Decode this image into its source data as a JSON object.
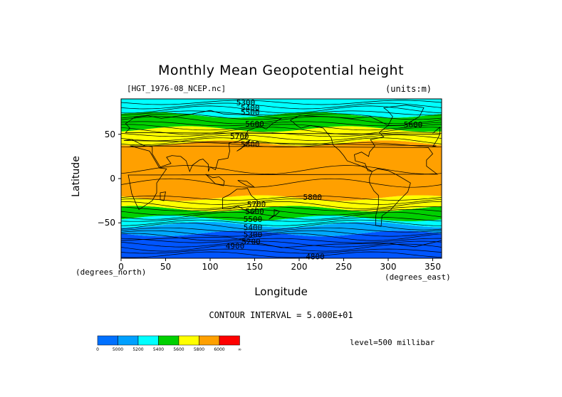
{
  "title": "Monthly Mean Geopotential height",
  "file_label": "[HGT_1976-08_NCEP.nc]",
  "units_label": "(units:m)",
  "y_axis": {
    "label": "Latitude",
    "unit_label": "(degrees_north)",
    "ticks": [
      "50",
      "0",
      "−50"
    ],
    "tick_values": [
      50,
      0,
      -50
    ]
  },
  "x_axis": {
    "label": "Longitude",
    "unit_label": "(degrees_east)",
    "ticks": [
      "0",
      "50",
      "100",
      "150",
      "200",
      "250",
      "300",
      "350"
    ],
    "tick_values": [
      0,
      50,
      100,
      150,
      200,
      250,
      300,
      350
    ]
  },
  "contour_interval_text": "CONTOUR INTERVAL = 5.000E+01",
  "level_text": "level=500 millibar",
  "contour_labels": [
    {
      "text": "5300",
      "lon": 140,
      "lat": 86
    },
    {
      "text": "5400",
      "lon": 145,
      "lat": 80
    },
    {
      "text": "5500",
      "lon": 145,
      "lat": 75
    },
    {
      "text": "5600",
      "lon": 150,
      "lat": 62
    },
    {
      "text": "5700",
      "lon": 133,
      "lat": 48
    },
    {
      "text": "5800",
      "lon": 145,
      "lat": 39
    },
    {
      "text": "5600",
      "lon": 328,
      "lat": 61
    },
    {
      "text": "5800",
      "lon": 215,
      "lat": -21
    },
    {
      "text": "5700",
      "lon": 152,
      "lat": -29
    },
    {
      "text": "5600",
      "lon": 150,
      "lat": -37
    },
    {
      "text": "5500",
      "lon": 148,
      "lat": -46
    },
    {
      "text": "5400",
      "lon": 148,
      "lat": -55
    },
    {
      "text": "5300",
      "lon": 148,
      "lat": -63
    },
    {
      "text": "5200",
      "lon": 146,
      "lat": -71
    },
    {
      "text": "4900",
      "lon": 128,
      "lat": -76
    },
    {
      "text": "4800",
      "lon": 218,
      "lat": -88
    }
  ],
  "colorbar": {
    "labels": [
      "0",
      "5000",
      "5200",
      "5400",
      "5600",
      "5800",
      "6000",
      "∞"
    ],
    "colors": [
      "#0070ff",
      "#00a0ff",
      "#00ffff",
      "#00d000",
      "#ffff00",
      "#ffa000",
      "#ff0000"
    ]
  },
  "shading_bands": [
    {
      "color": "#0055ff",
      "lat_min": -90,
      "lat_max": -62
    },
    {
      "color": "#00a8ff",
      "lat_min": -62,
      "lat_max": -52
    },
    {
      "color": "#00ffff",
      "lat_min": -52,
      "lat_max": -45
    },
    {
      "color": "#00d000",
      "lat_min": -45,
      "lat_max": -34
    },
    {
      "color": "#ffff00",
      "lat_min": -34,
      "lat_max": -22
    },
    {
      "color": "#ffa000",
      "lat_min": -22,
      "lat_max": 40
    },
    {
      "color": "#ffff00",
      "lat_min": 40,
      "lat_max": 56
    },
    {
      "color": "#00d000",
      "lat_min": 56,
      "lat_max": 72
    },
    {
      "color": "#00ffff",
      "lat_min": 72,
      "lat_max": 90
    }
  ]
}
